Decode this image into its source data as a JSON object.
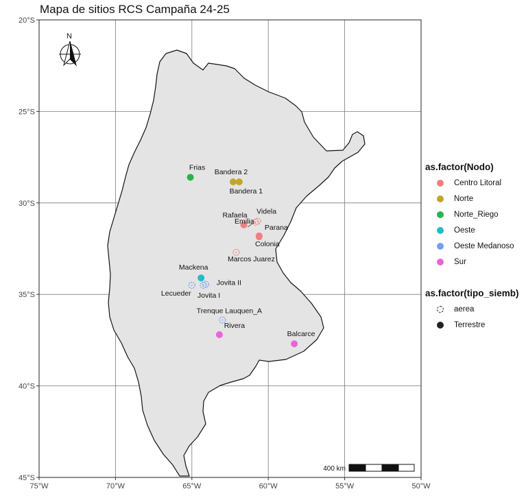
{
  "title": "Mapa de sitios RCS Campaña 24-25",
  "axes": {
    "x_ticks": [
      {
        "value": -75,
        "label": "75°W"
      },
      {
        "value": -70,
        "label": "70°W"
      },
      {
        "value": -65,
        "label": "65°W"
      },
      {
        "value": -60,
        "label": "60°W"
      },
      {
        "value": -55,
        "label": "55°W"
      },
      {
        "value": -50,
        "label": "50°W"
      }
    ],
    "y_ticks": [
      {
        "value": -20,
        "label": "20°S"
      },
      {
        "value": -25,
        "label": "25°S"
      },
      {
        "value": -30,
        "label": "30°S"
      },
      {
        "value": -35,
        "label": "35°S"
      },
      {
        "value": -40,
        "label": "40°S"
      },
      {
        "value": -45,
        "label": "45°S"
      }
    ],
    "xlim": [
      -75,
      -50
    ],
    "ylim": [
      -45,
      -20
    ]
  },
  "north_arrow": {
    "label": "N"
  },
  "scale_bar": {
    "label": "400 km"
  },
  "colors": {
    "Centro Litoral": "#f08080",
    "Norte": "#c4a52a",
    "Norte_Riego": "#2bb24c",
    "Oeste": "#21bcc7",
    "Oeste Medanoso": "#6fa2ee",
    "Sur": "#e866d8",
    "land": "#e4e4e4",
    "grid": "#7a7a7a"
  },
  "sites": [
    {
      "name": "Frias",
      "lon": -65.1,
      "lat": -28.6,
      "nodo": "Norte_Riego",
      "tipo": "Terrestre"
    },
    {
      "name": "Bandera 2",
      "lon": -62.3,
      "lat": -28.85,
      "nodo": "Norte",
      "tipo": "Terrestre"
    },
    {
      "name": "Bandera 1",
      "lon": -61.9,
      "lat": -28.85,
      "nodo": "Norte",
      "tipo": "Terrestre"
    },
    {
      "name": "Rafaela",
      "lon": -61.6,
      "lat": -31.2,
      "nodo": "Centro Litoral",
      "tipo": "Terrestre"
    },
    {
      "name": "Videla",
      "lon": -60.7,
      "lat": -31.0,
      "nodo": "Centro Litoral",
      "tipo": "aerea"
    },
    {
      "name": "Emilia",
      "lon": -60.85,
      "lat": -31.05,
      "nodo": "Centro Litoral",
      "tipo": "aerea"
    },
    {
      "name": "Parana",
      "lon": -60.6,
      "lat": -31.8,
      "nodo": "Centro Litoral",
      "tipo": "Terrestre"
    },
    {
      "name": "Colonia",
      "lon": -60.6,
      "lat": -31.85,
      "nodo": "Centro Litoral",
      "tipo": "Terrestre"
    },
    {
      "name": "Marcos Juarez",
      "lon": -62.1,
      "lat": -32.7,
      "nodo": "Centro Litoral",
      "tipo": "aerea"
    },
    {
      "name": "Mackena",
      "lon": -64.4,
      "lat": -34.1,
      "nodo": "Oeste",
      "tipo": "Terrestre"
    },
    {
      "name": "Lecueder",
      "lon": -65.0,
      "lat": -34.5,
      "nodo": "Oeste Medanoso",
      "tipo": "aerea"
    },
    {
      "name": "Jovita II",
      "lon": -64.1,
      "lat": -34.45,
      "nodo": "Oeste Medanoso",
      "tipo": "aerea"
    },
    {
      "name": "Jovita I",
      "lon": -64.25,
      "lat": -34.5,
      "nodo": "Oeste Medanoso",
      "tipo": "aerea"
    },
    {
      "name": "Trenque Lauquen_A",
      "lon": -63.0,
      "lat": -36.4,
      "nodo": "Oeste Medanoso",
      "tipo": "aerea"
    },
    {
      "name": "Rivera",
      "lon": -63.2,
      "lat": -37.2,
      "nodo": "Sur",
      "tipo": "Terrestre"
    },
    {
      "name": "Balcarce",
      "lon": -58.3,
      "lat": -37.7,
      "nodo": "Sur",
      "tipo": "Terrestre"
    }
  ],
  "legend_nodo": {
    "title": "as.factor(Nodo)",
    "items": [
      "Centro Litoral",
      "Norte",
      "Norte_Riego",
      "Oeste",
      "Oeste Medanoso",
      "Sur"
    ]
  },
  "legend_tipo": {
    "title": "as.factor(tipo_siemb)",
    "items": [
      "aerea",
      "Terrestre"
    ]
  }
}
